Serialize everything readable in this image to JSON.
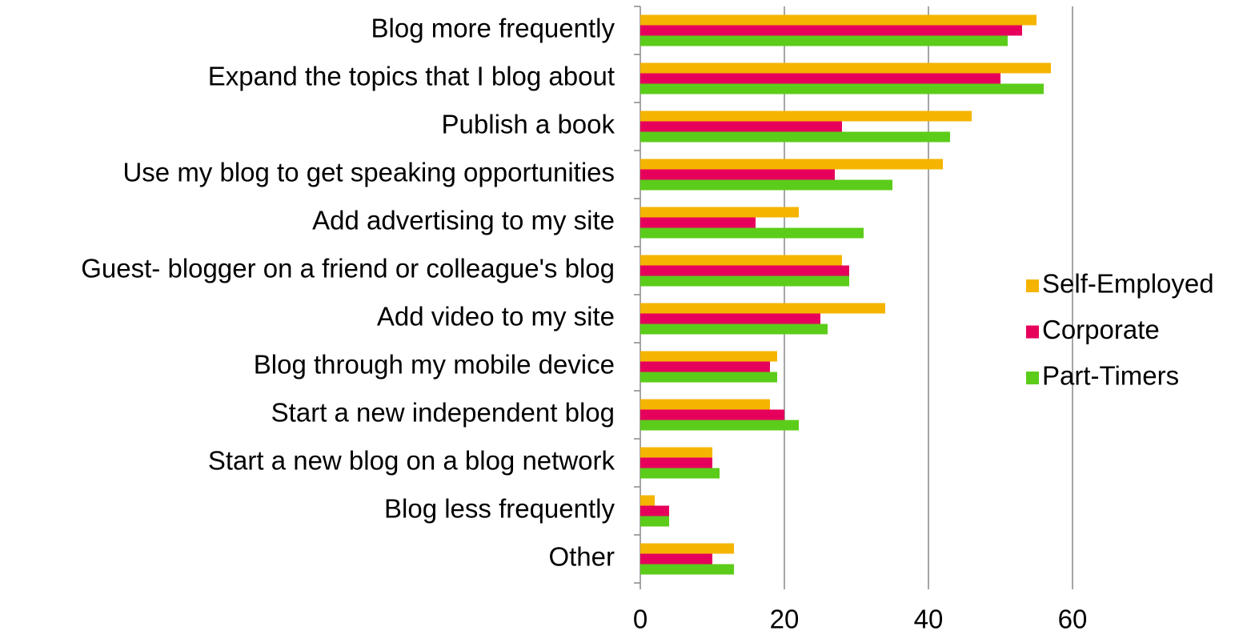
{
  "chart_data": {
    "type": "bar",
    "orientation": "horizontal",
    "categories": [
      "Blog more frequently",
      "Expand the topics that I blog about",
      "Publish a book",
      "Use my blog to get speaking opportunities",
      "Add advertising to my site",
      "Guest- blogger on a friend or colleague's blog",
      "Add video to my site",
      "Blog through my mobile device",
      "Start a new independent blog",
      "Start a new blog on a blog network",
      "Blog less frequently",
      "Other"
    ],
    "series": [
      {
        "name": "Self-Employed",
        "color": "#f5b400",
        "values": [
          55,
          57,
          46,
          42,
          22,
          28,
          34,
          19,
          18,
          10,
          2,
          13
        ]
      },
      {
        "name": "Corporate",
        "color": "#e6005c",
        "values": [
          53,
          50,
          28,
          27,
          16,
          29,
          25,
          18,
          20,
          10,
          4,
          10
        ]
      },
      {
        "name": "Part-Timers",
        "color": "#5ccc1a",
        "values": [
          51,
          56,
          43,
          35,
          31,
          29,
          26,
          19,
          22,
          11,
          4,
          13
        ]
      }
    ],
    "xlim": [
      0,
      80
    ],
    "xticks": [
      0,
      20,
      40,
      60
    ],
    "grid": true,
    "legend": "right"
  }
}
